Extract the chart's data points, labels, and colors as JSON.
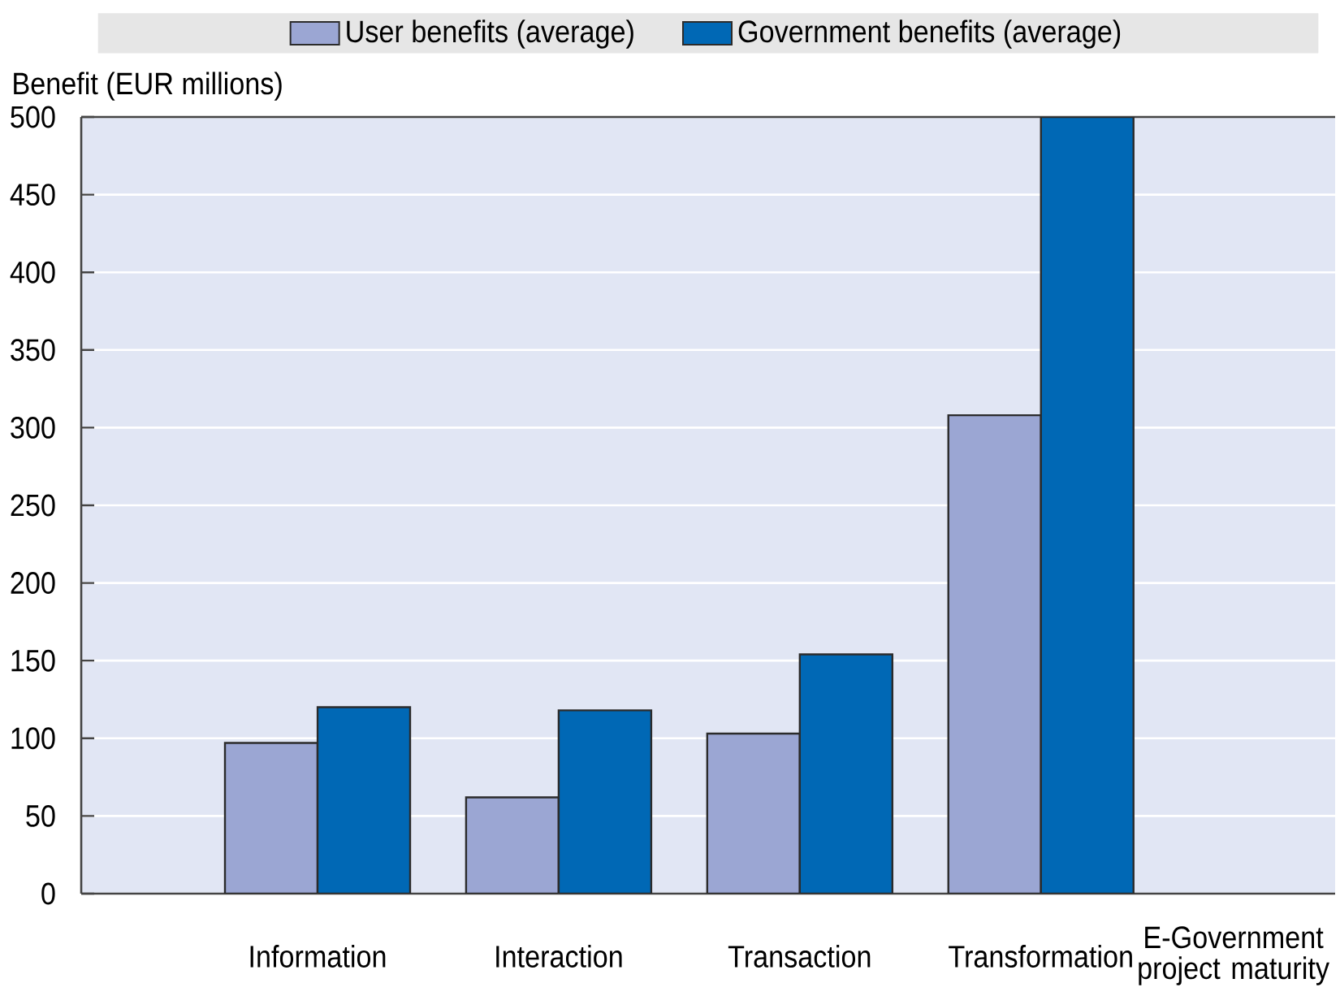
{
  "chart_data": {
    "type": "bar",
    "categories": [
      "Information",
      "Interaction",
      "Transaction",
      "Transformation"
    ],
    "series": [
      {
        "name": "User benefits (average)",
        "color": "#9ba6d3",
        "values": [
          97,
          62,
          103,
          308
        ]
      },
      {
        "name": "Government benefits (average)",
        "color": "#0068b5",
        "values": [
          120,
          118,
          154,
          500
        ]
      }
    ],
    "xlabel": "E-Government project maturity",
    "ylabel": "Benefit (EUR millions)",
    "ylim": [
      0,
      500
    ],
    "yticks": [
      0,
      50,
      100,
      150,
      200,
      250,
      300,
      350,
      400,
      450,
      500
    ],
    "grid": "y",
    "legend": "top"
  }
}
